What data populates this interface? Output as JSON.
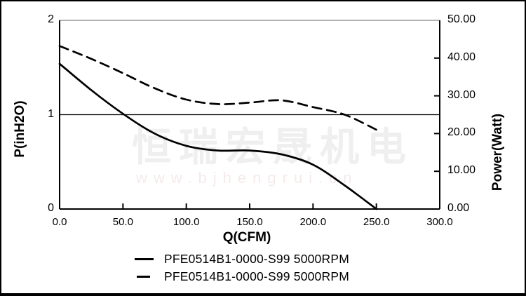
{
  "chart_data": {
    "type": "line",
    "title": "",
    "xlabel": "Q(CFM)",
    "ylabel_left": "P(inH2O)",
    "ylabel_right": "Power(Watt)",
    "xlim": [
      0,
      300
    ],
    "left_ylim": [
      0,
      2
    ],
    "right_ylim": [
      0,
      50
    ],
    "x_tick_labels": [
      "0.0",
      "50.0",
      "100.0",
      "150.0",
      "200.0",
      "250.0",
      "300.0"
    ],
    "left_tick_labels": [
      "2",
      "1",
      "0"
    ],
    "right_tick_labels": [
      "50.00",
      "40.00",
      "30.00",
      "20.00",
      "10.00",
      "0.00"
    ],
    "gridlines_left_axis_values": [
      1
    ],
    "legend_position": "bottom-center",
    "series": [
      {
        "name": "PFE0514B1-0000-S99 5000RPM",
        "style": "solid",
        "axis": "left",
        "unit": "inH2O",
        "x": [
          0,
          25,
          50,
          75,
          100,
          125,
          150,
          175,
          200,
          225,
          250
        ],
        "y": [
          1.54,
          1.26,
          1.01,
          0.8,
          0.67,
          0.62,
          0.62,
          0.58,
          0.47,
          0.25,
          0.0
        ]
      },
      {
        "name": "PFE0514B1-0000-S99 5000RPM",
        "style": "dashed",
        "axis": "right",
        "unit": "Watt",
        "x": [
          0,
          25,
          50,
          75,
          100,
          125,
          150,
          175,
          200,
          225,
          250
        ],
        "y": [
          43.2,
          39.8,
          36.0,
          32.0,
          29.0,
          27.8,
          28.2,
          28.8,
          27.0,
          25.0,
          21.0
        ]
      }
    ]
  },
  "legend": {
    "items": [
      {
        "label": "PFE0514B1-0000-S99 5000RPM",
        "style": "solid"
      },
      {
        "label": "PFE0514B1-0000-S99 5000RPM",
        "style": "dashed"
      }
    ]
  },
  "watermark": {
    "line1": "恒瑞宏晟机电",
    "line2": "www.bjhengrui.cn"
  },
  "colors": {
    "curve": "#000000",
    "axis": "#000000",
    "frame_top": "#9a9a9a",
    "watermark_cn": "#efefef",
    "watermark_url": "#f5eaea",
    "background": "#ffffff"
  }
}
